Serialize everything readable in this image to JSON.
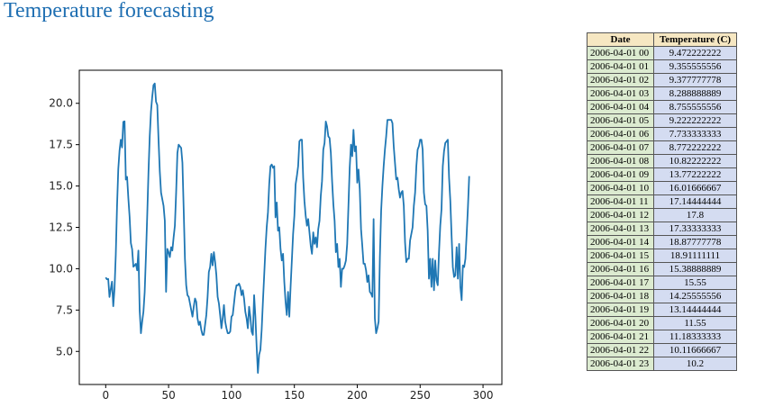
{
  "page": {
    "title": "Temperature forecasting"
  },
  "table": {
    "headers": [
      "Date",
      "Temperature (C)"
    ],
    "rows": [
      [
        "2006-04-01 00",
        "9.472222222"
      ],
      [
        "2006-04-01 01",
        "9.355555556"
      ],
      [
        "2006-04-01 02",
        "9.377777778"
      ],
      [
        "2006-04-01 03",
        "8.288888889"
      ],
      [
        "2006-04-01 04",
        "8.755555556"
      ],
      [
        "2006-04-01 05",
        "9.222222222"
      ],
      [
        "2006-04-01 06",
        "7.733333333"
      ],
      [
        "2006-04-01 07",
        "8.772222222"
      ],
      [
        "2006-04-01 08",
        "10.82222222"
      ],
      [
        "2006-04-01 09",
        "13.77222222"
      ],
      [
        "2006-04-01 10",
        "16.01666667"
      ],
      [
        "2006-04-01 11",
        "17.14444444"
      ],
      [
        "2006-04-01 12",
        "17.8"
      ],
      [
        "2006-04-01 13",
        "17.33333333"
      ],
      [
        "2006-04-01 14",
        "18.87777778"
      ],
      [
        "2006-04-01 15",
        "18.91111111"
      ],
      [
        "2006-04-01 16",
        "15.38888889"
      ],
      [
        "2006-04-01 17",
        "15.55"
      ],
      [
        "2006-04-01 18",
        "14.25555556"
      ],
      [
        "2006-04-01 19",
        "13.14444444"
      ],
      [
        "2006-04-01 20",
        "11.55"
      ],
      [
        "2006-04-01 21",
        "11.18333333"
      ],
      [
        "2006-04-01 22",
        "10.11666667"
      ],
      [
        "2006-04-01 23",
        "10.2"
      ]
    ]
  },
  "chart_data": {
    "type": "line",
    "title": "",
    "xlabel": "",
    "ylabel": "",
    "xlim": [
      -21,
      315
    ],
    "ylim": [
      3.0,
      22.0
    ],
    "xticks": [
      0,
      50,
      100,
      150,
      200,
      250,
      300
    ],
    "xtick_labels": [
      "0",
      "50",
      "100",
      "150",
      "200",
      "250",
      "300"
    ],
    "yticks": [
      5.0,
      7.5,
      10.0,
      12.5,
      15.0,
      17.5,
      20.0
    ],
    "ytick_labels": [
      "5.0",
      "7.5",
      "10.0",
      "12.5",
      "15.0",
      "17.5",
      "20.0"
    ],
    "grid": false,
    "line_color": "#1f77b4",
    "series": [
      {
        "points": [
          [
            0,
            9.47
          ],
          [
            1,
            9.36
          ],
          [
            2,
            9.38
          ],
          [
            3,
            8.29
          ],
          [
            4,
            8.76
          ],
          [
            5,
            9.22
          ],
          [
            6,
            7.73
          ],
          [
            7,
            8.77
          ],
          [
            8,
            10.82
          ],
          [
            9,
            13.77
          ],
          [
            10,
            16.02
          ],
          [
            11,
            17.14
          ],
          [
            12,
            17.8
          ],
          [
            13,
            17.33
          ],
          [
            14,
            18.88
          ],
          [
            15,
            18.91
          ],
          [
            16,
            15.39
          ],
          [
            17,
            15.55
          ],
          [
            18,
            14.26
          ],
          [
            19,
            13.14
          ],
          [
            20,
            11.55
          ],
          [
            21,
            11.18
          ],
          [
            22,
            10.12
          ],
          [
            23,
            10.2
          ],
          [
            24,
            10.3
          ],
          [
            25,
            9.9
          ],
          [
            26,
            11.1
          ],
          [
            27,
            7.5
          ],
          [
            28,
            6.1
          ],
          [
            29,
            6.8
          ],
          [
            30,
            7.4
          ],
          [
            31,
            8.6
          ],
          [
            32,
            10.8
          ],
          [
            33,
            13.2
          ],
          [
            34,
            15.8
          ],
          [
            35,
            18.0
          ],
          [
            36,
            19.5
          ],
          [
            37,
            20.4
          ],
          [
            38,
            21.1
          ],
          [
            39,
            21.2
          ],
          [
            40,
            20.1
          ],
          [
            41,
            19.9
          ],
          [
            42,
            17.8
          ],
          [
            43,
            15.9
          ],
          [
            44,
            14.6
          ],
          [
            45,
            14.2
          ],
          [
            46,
            13.8
          ],
          [
            47,
            12.9
          ],
          [
            48,
            8.6
          ],
          [
            49,
            11.2
          ],
          [
            50,
            11.0
          ],
          [
            51,
            10.7
          ],
          [
            52,
            11.3
          ],
          [
            53,
            11.1
          ],
          [
            54,
            11.9
          ],
          [
            55,
            12.6
          ],
          [
            56,
            14.6
          ],
          [
            57,
            17.0
          ],
          [
            58,
            17.5
          ],
          [
            59,
            17.4
          ],
          [
            60,
            17.3
          ],
          [
            61,
            16.4
          ],
          [
            62,
            13.6
          ],
          [
            63,
            10.6
          ],
          [
            64,
            9.0
          ],
          [
            65,
            8.4
          ],
          [
            66,
            8.3
          ],
          [
            67,
            7.9
          ],
          [
            68,
            7.5
          ],
          [
            69,
            7.1
          ],
          [
            70,
            7.7
          ],
          [
            71,
            8.2
          ],
          [
            72,
            8.0
          ],
          [
            73,
            7.0
          ],
          [
            74,
            6.6
          ],
          [
            75,
            6.8
          ],
          [
            76,
            6.3
          ],
          [
            77,
            6.0
          ],
          [
            78,
            6.0
          ],
          [
            79,
            6.6
          ],
          [
            80,
            7.2
          ],
          [
            81,
            8.3
          ],
          [
            82,
            9.8
          ],
          [
            83,
            10.1
          ],
          [
            84,
            10.9
          ],
          [
            85,
            10.2
          ],
          [
            86,
            11.0
          ],
          [
            87,
            10.4
          ],
          [
            88,
            9.6
          ],
          [
            89,
            8.3
          ],
          [
            90,
            7.9
          ],
          [
            91,
            7.2
          ],
          [
            92,
            6.4
          ],
          [
            93,
            7.0
          ],
          [
            94,
            7.8
          ],
          [
            95,
            6.8
          ],
          [
            96,
            6.4
          ],
          [
            97,
            6.1
          ],
          [
            98,
            6.1
          ],
          [
            99,
            6.2
          ],
          [
            100,
            7.1
          ],
          [
            101,
            7.2
          ],
          [
            102,
            7.9
          ],
          [
            103,
            8.6
          ],
          [
            104,
            9.0
          ],
          [
            105,
            9.0
          ],
          [
            106,
            9.1
          ],
          [
            107,
            8.9
          ],
          [
            108,
            8.4
          ],
          [
            109,
            8.7
          ],
          [
            110,
            8.2
          ],
          [
            111,
            7.4
          ],
          [
            112,
            7.0
          ],
          [
            113,
            6.4
          ],
          [
            114,
            7.7
          ],
          [
            115,
            7.1
          ],
          [
            116,
            6.2
          ],
          [
            117,
            6.0
          ],
          [
            118,
            8.4
          ],
          [
            119,
            7.1
          ],
          [
            120,
            5.3
          ],
          [
            121,
            3.7
          ],
          [
            122,
            4.8
          ],
          [
            123,
            5.1
          ],
          [
            124,
            6.3
          ],
          [
            125,
            8.0
          ],
          [
            126,
            9.6
          ],
          [
            127,
            11.2
          ],
          [
            128,
            12.5
          ],
          [
            129,
            13.4
          ],
          [
            130,
            15.1
          ],
          [
            131,
            16.2
          ],
          [
            132,
            16.3
          ],
          [
            133,
            16.1
          ],
          [
            134,
            16.2
          ],
          [
            135,
            13.1
          ],
          [
            136,
            14.0
          ],
          [
            137,
            12.3
          ],
          [
            138,
            12.5
          ],
          [
            139,
            11.2
          ],
          [
            140,
            10.5
          ],
          [
            141,
            10.9
          ],
          [
            142,
            9.2
          ],
          [
            143,
            8.0
          ],
          [
            144,
            7.2
          ],
          [
            145,
            8.6
          ],
          [
            146,
            7.1
          ],
          [
            147,
            8.9
          ],
          [
            148,
            10.5
          ],
          [
            149,
            12.1
          ],
          [
            150,
            13.2
          ],
          [
            151,
            15.1
          ],
          [
            152,
            15.6
          ],
          [
            153,
            16.2
          ],
          [
            154,
            17.7
          ],
          [
            155,
            17.8
          ],
          [
            156,
            17.8
          ],
          [
            157,
            15.5
          ],
          [
            158,
            14.1
          ],
          [
            159,
            13.2
          ],
          [
            160,
            12.6
          ],
          [
            161,
            13.0
          ],
          [
            162,
            12.2
          ],
          [
            163,
            11.4
          ],
          [
            164,
            10.9
          ],
          [
            165,
            12.2
          ],
          [
            166,
            11.5
          ],
          [
            167,
            11.9
          ],
          [
            168,
            11.3
          ],
          [
            169,
            12.4
          ],
          [
            170,
            12.9
          ],
          [
            171,
            14.4
          ],
          [
            172,
            15.3
          ],
          [
            173,
            17.2
          ],
          [
            174,
            17.6
          ],
          [
            175,
            18.9
          ],
          [
            176,
            18.6
          ],
          [
            177,
            18.0
          ],
          [
            178,
            17.9
          ],
          [
            179,
            17.0
          ],
          [
            180,
            15.3
          ],
          [
            181,
            13.9
          ],
          [
            182,
            12.9
          ],
          [
            183,
            11.0
          ],
          [
            184,
            11.5
          ],
          [
            185,
            10.1
          ],
          [
            186,
            10.6
          ],
          [
            187,
            8.9
          ],
          [
            188,
            10.0
          ],
          [
            189,
            10.0
          ],
          [
            190,
            10.2
          ],
          [
            191,
            10.5
          ],
          [
            192,
            11.5
          ],
          [
            193,
            13.8
          ],
          [
            194,
            16.1
          ],
          [
            195,
            17.5
          ],
          [
            196,
            16.8
          ],
          [
            197,
            18.4
          ],
          [
            198,
            17.1
          ],
          [
            199,
            17.4
          ],
          [
            200,
            15.2
          ],
          [
            201,
            16.0
          ],
          [
            202,
            14.8
          ],
          [
            203,
            12.4
          ],
          [
            204,
            11.4
          ],
          [
            205,
            10.3
          ],
          [
            206,
            10.3
          ],
          [
            207,
            9.9
          ],
          [
            208,
            9.2
          ],
          [
            209,
            9.6
          ],
          [
            210,
            8.6
          ],
          [
            211,
            8.5
          ],
          [
            212,
            8.3
          ],
          [
            213,
            13.0
          ],
          [
            214,
            7.0
          ],
          [
            215,
            6.1
          ],
          [
            216,
            6.4
          ],
          [
            217,
            6.8
          ],
          [
            218,
            10.7
          ],
          [
            219,
            13.5
          ],
          [
            220,
            15.0
          ],
          [
            221,
            16.2
          ],
          [
            222,
            17.2
          ],
          [
            223,
            18.0
          ],
          [
            224,
            19.0
          ],
          [
            225,
            19.0
          ],
          [
            226,
            19.0
          ],
          [
            227,
            19.0
          ],
          [
            228,
            18.8
          ],
          [
            229,
            17.4
          ],
          [
            230,
            16.4
          ],
          [
            231,
            15.4
          ],
          [
            232,
            15.5
          ],
          [
            233,
            14.8
          ],
          [
            234,
            14.3
          ],
          [
            235,
            14.6
          ],
          [
            236,
            14.7
          ],
          [
            237,
            13.8
          ],
          [
            238,
            11.6
          ],
          [
            239,
            10.4
          ],
          [
            240,
            10.6
          ],
          [
            241,
            10.6
          ],
          [
            242,
            11.7
          ],
          [
            243,
            12.1
          ],
          [
            244,
            12.5
          ],
          [
            245,
            13.8
          ],
          [
            246,
            14.6
          ],
          [
            247,
            16.2
          ],
          [
            248,
            17.2
          ],
          [
            249,
            17.4
          ],
          [
            250,
            17.8
          ],
          [
            251,
            17.8
          ],
          [
            252,
            17.2
          ],
          [
            253,
            14.6
          ],
          [
            254,
            13.9
          ],
          [
            255,
            13.8
          ],
          [
            256,
            12.3
          ],
          [
            257,
            9.4
          ],
          [
            258,
            10.6
          ],
          [
            259,
            8.9
          ],
          [
            260,
            10.6
          ],
          [
            261,
            8.7
          ],
          [
            262,
            10.5
          ],
          [
            263,
            9.3
          ],
          [
            264,
            9.0
          ],
          [
            265,
            11.0
          ],
          [
            266,
            12.6
          ],
          [
            267,
            13.6
          ],
          [
            268,
            16.2
          ],
          [
            269,
            17.1
          ],
          [
            270,
            17.6
          ],
          [
            271,
            17.7
          ],
          [
            272,
            17.8
          ],
          [
            273,
            15.5
          ],
          [
            274,
            14.1
          ],
          [
            275,
            12.0
          ],
          [
            276,
            10.1
          ],
          [
            277,
            9.5
          ],
          [
            278,
            9.6
          ],
          [
            279,
            11.3
          ],
          [
            280,
            9.4
          ],
          [
            281,
            11.5
          ],
          [
            282,
            8.9
          ],
          [
            283,
            8.1
          ],
          [
            284,
            10.2
          ],
          [
            285,
            10.1
          ],
          [
            286,
            10.6
          ],
          [
            287,
            12.1
          ],
          [
            288,
            13.7
          ],
          [
            289,
            15.6
          ]
        ]
      }
    ]
  }
}
